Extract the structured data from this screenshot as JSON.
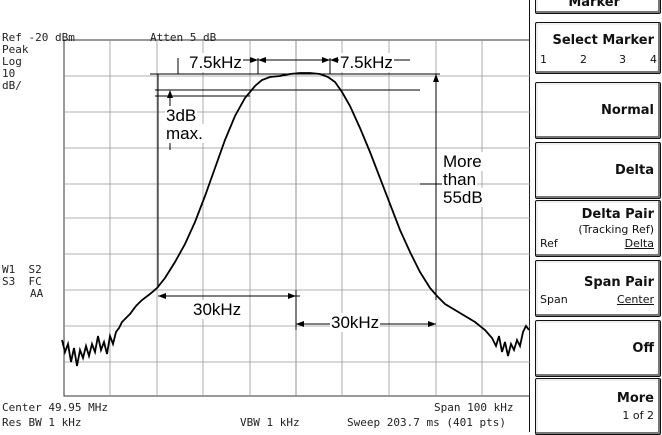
{
  "screen": {
    "ref_level": "Ref -20 dBm",
    "atten": "Atten 5 dB",
    "scale_mode": "Peak",
    "scale_type": "Log",
    "scale_value": "10",
    "scale_unit": "dB/",
    "trace_line1": "W1  S2",
    "trace_line2": "S3  FC",
    "trace_line3": "AA",
    "center": "Center 49.95 MHz",
    "span": "Span 100 kHz",
    "res_bw": "Res BW 1 kHz",
    "vbw": "VBW 1 kHz",
    "sweep": "Sweep 203.7 ms (401 pts)"
  },
  "annotations": {
    "left_75": "7.5kHz",
    "right_75": "7.5kHz",
    "ripple_line1": "3dB",
    "ripple_line2": "max.",
    "rej_line1": "More",
    "rej_line2": "than",
    "rej_line3": "55dB",
    "bw_left": "30kHz",
    "bw_right": "30kHz"
  },
  "softkeys": {
    "header": "Marker",
    "select_marker": {
      "label": "Select Marker",
      "options": [
        "1",
        "2",
        "3",
        "4"
      ]
    },
    "normal": "Normal",
    "delta": "Delta",
    "delta_pair": {
      "label": "Delta Pair",
      "sub": "(Tracking Ref)",
      "left": "Ref",
      "right": "Delta"
    },
    "span_pair": {
      "label": "Span Pair",
      "left": "Span",
      "right": "Center"
    },
    "off": "Off",
    "more": {
      "label": "More",
      "sub": "1 of 2"
    }
  }
}
